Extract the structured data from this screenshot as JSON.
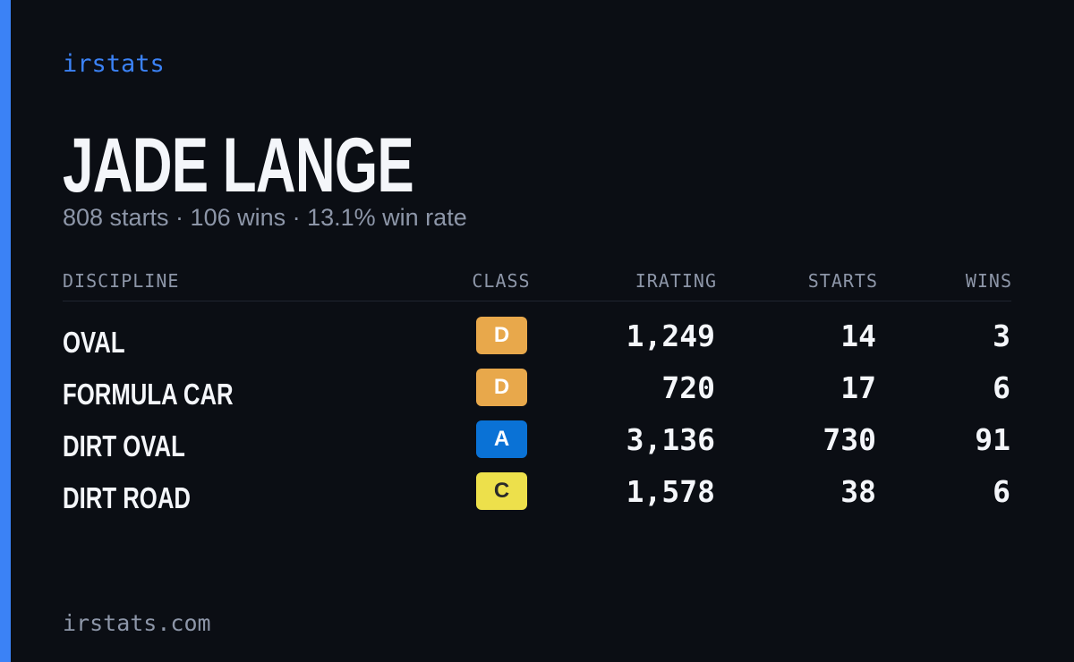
{
  "brand": "irstats",
  "driver": {
    "name": "JADE LANGE",
    "summary": "808 starts · 106 wins · 13.1% win rate"
  },
  "table": {
    "headers": [
      "DISCIPLINE",
      "CLASS",
      "IRATING",
      "STARTS",
      "WINS"
    ],
    "rows": [
      {
        "discipline": "OVAL",
        "class": "D",
        "class_color": "#e8a84b",
        "irating": "1,249",
        "starts": "14",
        "wins": "3"
      },
      {
        "discipline": "FORMULA CAR",
        "class": "D",
        "class_color": "#e8a84b",
        "irating": "720",
        "starts": "17",
        "wins": "6"
      },
      {
        "discipline": "DIRT OVAL",
        "class": "A",
        "class_color": "#0a72d6",
        "irating": "3,136",
        "starts": "730",
        "wins": "91"
      },
      {
        "discipline": "DIRT ROAD",
        "class": "C",
        "class_color": "#ede04b",
        "irating": "1,578",
        "starts": "38",
        "wins": "6"
      }
    ]
  },
  "footer": "irstats.com"
}
